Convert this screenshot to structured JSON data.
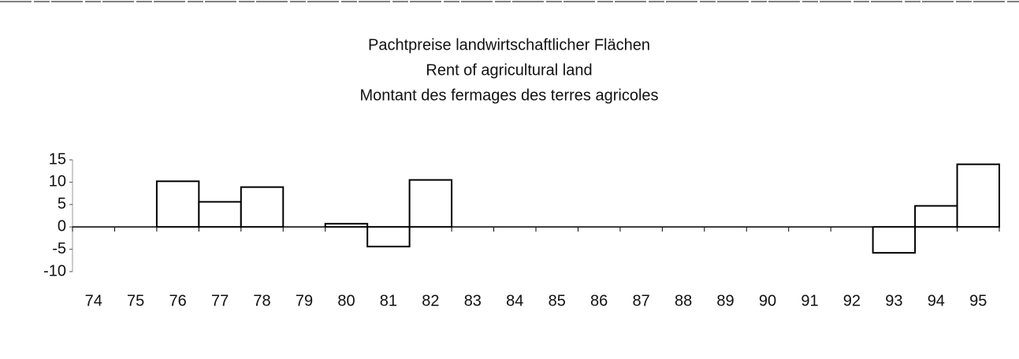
{
  "chart_data": {
    "type": "bar",
    "title": [
      "Pachtpreise landwirtschaftlicher Flächen",
      "Rent of agricultural land",
      "Montant des fermages des terres agricoles"
    ],
    "categories": [
      "74",
      "75",
      "76",
      "77",
      "78",
      "79",
      "80",
      "81",
      "82",
      "83",
      "84",
      "85",
      "86",
      "87",
      "88",
      "89",
      "90",
      "91",
      "92",
      "93",
      "94",
      "95"
    ],
    "values": [
      null,
      null,
      10.2,
      5.6,
      8.9,
      0,
      0.7,
      -4.4,
      10.5,
      null,
      null,
      null,
      null,
      null,
      null,
      null,
      null,
      null,
      null,
      -5.8,
      4.7,
      14.0
    ],
    "color": "#ffffff",
    "ylim": [
      -10,
      15
    ],
    "yticks": [
      15,
      10,
      5,
      0,
      -5,
      -10
    ],
    "grid": false
  }
}
